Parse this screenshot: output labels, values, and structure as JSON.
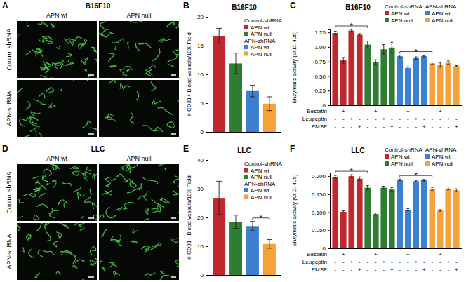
{
  "image_panels": [
    {
      "label": "A",
      "title": "B16F10",
      "columns": [
        "APN wt",
        "APN null"
      ],
      "rows": [
        "Control shRNA",
        "APN-shRNA"
      ]
    },
    {
      "label": "D",
      "title": "LLC",
      "columns": [
        "APN wt",
        "APN null"
      ],
      "rows": [
        "Control shRNA",
        "APN-shRNA"
      ]
    }
  ],
  "chart_data": [
    {
      "type": "bar",
      "panel_label": "B",
      "title": "B16F10",
      "y_label": "# CD31+ Blood vessels/10X Field",
      "categories": [
        null,
        null,
        null,
        null
      ],
      "series": [
        {
          "name": "APN wt",
          "group": "Control-shRNA",
          "color": "#c1272d",
          "values": [
            16.7,
            null,
            null,
            null
          ],
          "errors": [
            1.3,
            null,
            null,
            null
          ]
        },
        {
          "name": "APN null",
          "group": "Control-shRNA",
          "color": "#2e7d32",
          "values": [
            null,
            11.9,
            null,
            null
          ],
          "errors": [
            null,
            1.8,
            null,
            null
          ]
        },
        {
          "name": "APN wt",
          "group": "APN-shRNA",
          "color": "#3a7fd0",
          "values": [
            null,
            null,
            7.1,
            null
          ],
          "errors": [
            null,
            null,
            1.0,
            null
          ]
        },
        {
          "name": "APN null",
          "group": "APN-shRNA",
          "color": "#f4a23a",
          "values": [
            null,
            null,
            null,
            4.9
          ],
          "errors": [
            null,
            null,
            null,
            1.2
          ]
        }
      ],
      "ylim": [
        0,
        20
      ],
      "yticks": [
        0,
        5,
        10,
        15,
        20
      ],
      "grid": false,
      "legend": "upper right",
      "tick_labels": "y"
    },
    {
      "type": "bar",
      "panel_label": "C",
      "title": "B16F10",
      "y_label": "Enzymatic activity (O.D. 405)",
      "categories": [
        null,
        null,
        null,
        null,
        null,
        null,
        null,
        null,
        null,
        null,
        null,
        null,
        null,
        null,
        null,
        null
      ],
      "series": [
        {
          "name": "APN wt",
          "group": "Control-shRNA",
          "color": "#c1272d",
          "values": [
            1.24,
            0.77,
            1.28,
            1.21,
            null,
            null,
            null,
            null,
            null,
            null,
            null,
            null,
            null,
            null,
            null,
            null
          ],
          "errors": [
            0.03,
            0.05,
            0.02,
            0.02,
            null,
            null,
            null,
            null,
            null,
            null,
            null,
            null,
            null,
            null,
            null,
            null
          ]
        },
        {
          "name": "APN null",
          "group": "Control-shRNA",
          "color": "#2e7d32",
          "values": [
            null,
            null,
            null,
            null,
            1.04,
            0.74,
            0.96,
            0.99,
            null,
            null,
            null,
            null,
            null,
            null,
            null,
            null
          ],
          "errors": [
            null,
            null,
            null,
            null,
            0.06,
            0.04,
            0.08,
            0.09,
            null,
            null,
            null,
            null,
            null,
            null,
            null,
            null
          ]
        },
        {
          "name": "APN wt",
          "group": "APN-shRNA",
          "color": "#3a7fd0",
          "values": [
            null,
            null,
            null,
            null,
            null,
            null,
            null,
            null,
            0.84,
            0.64,
            0.81,
            0.84,
            null,
            null,
            null,
            null
          ],
          "errors": [
            null,
            null,
            null,
            null,
            null,
            null,
            null,
            null,
            0.02,
            0.02,
            0.02,
            0.01,
            null,
            null,
            null,
            null
          ]
        },
        {
          "name": "APN null",
          "group": "APN-shRNA",
          "color": "#f4a23a",
          "values": [
            null,
            null,
            null,
            null,
            null,
            null,
            null,
            null,
            null,
            null,
            null,
            null,
            0.72,
            0.69,
            0.73,
            0.67
          ],
          "errors": [
            null,
            null,
            null,
            null,
            null,
            null,
            null,
            null,
            null,
            null,
            null,
            null,
            0.02,
            0.04,
            0.03,
            0.01
          ]
        }
      ],
      "treatments": [
        {
          "name": "Bestatin",
          "signs": [
            "-",
            "+",
            "-",
            "-",
            "-",
            "+",
            "-",
            "-",
            "-",
            "+",
            "-",
            "-",
            "-",
            "+",
            "-",
            "-"
          ]
        },
        {
          "name": "Leupeptin",
          "signs": [
            "-",
            "-",
            "+",
            "-",
            "-",
            "-",
            "+",
            "-",
            "-",
            "-",
            "+",
            "-",
            "-",
            "-",
            "+",
            "-"
          ]
        },
        {
          "name": "PMSF",
          "signs": [
            "-",
            "-",
            "-",
            "+",
            "-",
            "-",
            "-",
            "+",
            "-",
            "-",
            "-",
            "+",
            "-",
            "-",
            "-",
            "+"
          ]
        }
      ],
      "annotations": [
        {
          "text": "*",
          "group": "Control-shRNA"
        },
        {
          "text": "*",
          "group": "APN-shRNA"
        }
      ],
      "ylim": [
        0,
        1.3
      ],
      "yticks": [
        0,
        0.25,
        {
          "value": 0.5,
          "label": "0.50"
        },
        0.75,
        {
          "value": 1,
          "label": "1.00"
        },
        1.25
      ],
      "grid": false,
      "legend": "top",
      "tick_labels": "y"
    },
    {
      "type": "bar",
      "panel_label": "E",
      "title": "LLC",
      "y_label": "# CD31+ Blood vessels/10X Field",
      "categories": [
        null,
        null,
        null,
        null
      ],
      "series": [
        {
          "name": "APN wt",
          "group": "Control-shRNA",
          "color": "#c1272d",
          "values": [
            26.8,
            null,
            null,
            null
          ],
          "errors": [
            5.8,
            null,
            null,
            null
          ]
        },
        {
          "name": "APN null",
          "group": "Control-shRNA",
          "color": "#2e7d32",
          "values": [
            null,
            18.5,
            null,
            null
          ],
          "errors": [
            null,
            2.3,
            null,
            null
          ]
        },
        {
          "name": "APN wt",
          "group": "APN-shRNA",
          "color": "#3a7fd0",
          "values": [
            null,
            null,
            17.0,
            null
          ],
          "errors": [
            null,
            null,
            1.6,
            null
          ]
        },
        {
          "name": "APN null",
          "group": "APN-shRNA",
          "color": "#f4a23a",
          "values": [
            null,
            null,
            null,
            10.8
          ],
          "errors": [
            null,
            null,
            null,
            1.5
          ]
        }
      ],
      "annotations": [
        {
          "text": "*",
          "group": "APN-shRNA"
        }
      ],
      "ylim": [
        0,
        40
      ],
      "yticks": [
        0,
        10,
        20,
        30,
        40
      ],
      "grid": false,
      "legend": "upper right",
      "tick_labels": "y"
    },
    {
      "type": "bar",
      "panel_label": "F",
      "title": "LLC",
      "y_label": "Enzymatic activity (O.D. 405)",
      "categories": [
        null,
        null,
        null,
        null,
        null,
        null,
        null,
        null,
        null,
        null,
        null,
        null,
        null,
        null,
        null,
        null
      ],
      "series": [
        {
          "name": "APN wt",
          "group": "Control-shRNA",
          "color": "#c1272d",
          "values": [
            0.198,
            0.101,
            0.2,
            0.193,
            null,
            null,
            null,
            null,
            null,
            null,
            null,
            null,
            null,
            null,
            null,
            null
          ],
          "errors": [
            0.004,
            0.003,
            0.004,
            0.005,
            null,
            null,
            null,
            null,
            null,
            null,
            null,
            null,
            null,
            null,
            null,
            null
          ]
        },
        {
          "name": "APN null",
          "group": "Control-shRNA",
          "color": "#2e7d32",
          "values": [
            null,
            null,
            null,
            null,
            0.168,
            0.095,
            0.168,
            0.163,
            null,
            null,
            null,
            null,
            null,
            null,
            null,
            null
          ],
          "errors": [
            null,
            null,
            null,
            null,
            0.006,
            0.003,
            0.004,
            0.005,
            null,
            null,
            null,
            null,
            null,
            null,
            null,
            null
          ]
        },
        {
          "name": "APN wt",
          "group": "APN-shRNA",
          "color": "#3a7fd0",
          "values": [
            null,
            null,
            null,
            null,
            null,
            null,
            null,
            null,
            0.19,
            0.107,
            0.186,
            0.189,
            null,
            null,
            null,
            null
          ],
          "errors": [
            null,
            null,
            null,
            null,
            null,
            null,
            null,
            null,
            0.002,
            0.003,
            0.002,
            0.002,
            null,
            null,
            null,
            null
          ]
        },
        {
          "name": "APN null",
          "group": "APN-shRNA",
          "color": "#f4a23a",
          "values": [
            null,
            null,
            null,
            null,
            null,
            null,
            null,
            null,
            null,
            null,
            null,
            null,
            0.165,
            0.105,
            0.166,
            0.161
          ],
          "errors": [
            null,
            null,
            null,
            null,
            null,
            null,
            null,
            null,
            null,
            null,
            null,
            null,
            0.004,
            0.002,
            0.004,
            0.004
          ]
        }
      ],
      "treatments": [
        {
          "name": "Bestatin",
          "signs": [
            "-",
            "+",
            "-",
            "-",
            "-",
            "+",
            "-",
            "-",
            "-",
            "+",
            "-",
            "-",
            "-",
            "+",
            "-",
            "-"
          ]
        },
        {
          "name": "Leupeptin",
          "signs": [
            "-",
            "-",
            "+",
            "-",
            "-",
            "-",
            "+",
            "-",
            "-",
            "-",
            "+",
            "-",
            "-",
            "-",
            "+",
            "-"
          ]
        },
        {
          "name": "PMSF",
          "signs": [
            "-",
            "-",
            "-",
            "+",
            "-",
            "-",
            "-",
            "+",
            "-",
            "-",
            "-",
            "+",
            "-",
            "-",
            "-",
            "+"
          ]
        }
      ],
      "annotations": [
        {
          "text": "*",
          "group": "Control-shRNA"
        },
        {
          "text": "*",
          "group": "APN-shRNA"
        }
      ],
      "ylim": [
        0,
        0.21
      ],
      "yticks": [
        0,
        {
          "value": 0.05,
          "label": "0.050"
        },
        {
          "value": 0.1,
          "label": "0.100"
        },
        {
          "value": 0.15,
          "label": "0.150"
        },
        {
          "value": 0.2,
          "label": "0.200"
        }
      ],
      "grid": false,
      "legend": "top",
      "tick_labels": "y"
    }
  ]
}
